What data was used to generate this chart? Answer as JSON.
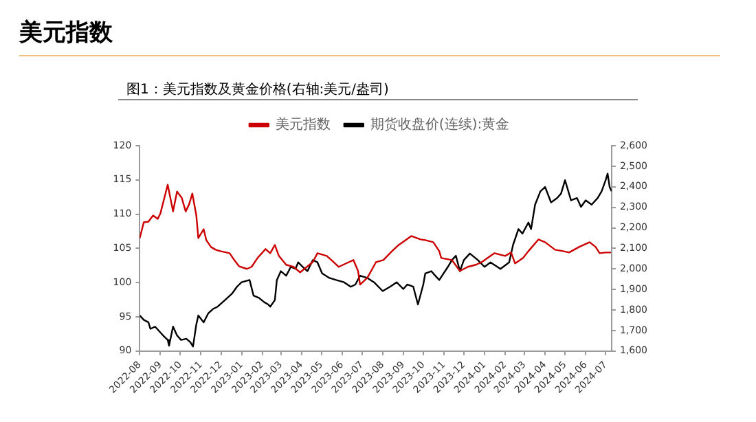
{
  "chart_data": {
    "type": "line",
    "title": "美元指数",
    "subtitle": "图1：美元指数及黄金价格(右轴:美元/盎司)",
    "xlim": [
      "2022-08-01",
      "2024-07-10"
    ],
    "xticks": [
      "2022-08",
      "2022-09",
      "2022-10",
      "2022-11",
      "2022-12",
      "2023-01",
      "2023-02",
      "2023-03",
      "2023-04",
      "2023-05",
      "2023-06",
      "2023-07",
      "2023-08",
      "2023-09",
      "2023-10",
      "2023-11",
      "2023-12",
      "2024-01",
      "2024-02",
      "2024-03",
      "2024-04",
      "2024-05",
      "2024-06",
      "2024-07"
    ],
    "ylim": [
      90,
      120
    ],
    "yticks": [
      90,
      95,
      100,
      105,
      110,
      115,
      120
    ],
    "y2lim": [
      1600,
      2600
    ],
    "y2ticks": [
      {
        "value": 1600,
        "label": "1,600"
      },
      {
        "value": 1700,
        "label": "1,700"
      },
      {
        "value": 1800,
        "label": "1,800"
      },
      {
        "value": 1900,
        "label": "1,900"
      },
      {
        "value": 2000,
        "label": "2,000"
      },
      {
        "value": 2100,
        "label": "2,100"
      },
      {
        "value": 2200,
        "label": "2,200"
      },
      {
        "value": 2300,
        "label": "2,300"
      },
      {
        "value": 2400,
        "label": "2,400"
      },
      {
        "value": 2500,
        "label": "2,500"
      },
      {
        "value": 2600,
        "label": "2,600"
      }
    ],
    "legend": "top",
    "marker": "none",
    "series": [
      {
        "name": "美元指数",
        "color": "#cc0000",
        "x": [
          "2022-08-01",
          "2022-08-07",
          "2022-08-14",
          "2022-08-21",
          "2022-08-28",
          "2022-09-01",
          "2022-09-12",
          "2022-09-20",
          "2022-09-26",
          "2022-10-03",
          "2022-10-09",
          "2022-10-14",
          "2022-10-19",
          "2022-10-25",
          "2022-10-28",
          "2022-11-05",
          "2022-11-09",
          "2022-11-16",
          "2022-11-23",
          "2022-11-30",
          "2022-12-14",
          "2022-12-21",
          "2022-12-28",
          "2023-01-09",
          "2023-01-16",
          "2023-01-25",
          "2023-02-06",
          "2023-02-13",
          "2023-02-20",
          "2023-02-26",
          "2023-03-09",
          "2023-03-20",
          "2023-03-30",
          "2023-04-18",
          "2023-04-25",
          "2023-05-09",
          "2023-05-16",
          "2023-05-27",
          "2023-06-18",
          "2023-06-25",
          "2023-06-28",
          "2023-07-09",
          "2023-07-22",
          "2023-08-02",
          "2023-08-15",
          "2023-08-25",
          "2023-09-13",
          "2023-09-27",
          "2023-10-04",
          "2023-10-16",
          "2023-10-25",
          "2023-10-28",
          "2023-11-13",
          "2023-11-25",
          "2023-12-07",
          "2023-12-19",
          "2023-12-28",
          "2024-01-16",
          "2024-02-01",
          "2024-02-10",
          "2024-02-16",
          "2024-02-28",
          "2024-03-07",
          "2024-03-22",
          "2024-04-01",
          "2024-04-16",
          "2024-04-28",
          "2024-05-07",
          "2024-05-22",
          "2024-06-07",
          "2024-06-16",
          "2024-06-22",
          "2024-07-01",
          "2024-07-09"
        ],
        "values": [
          106.5,
          108.8,
          108.9,
          109.8,
          109.3,
          110.1,
          114.3,
          110.4,
          113.3,
          112.4,
          110.4,
          111.4,
          113.0,
          109.8,
          106.5,
          107.8,
          106.2,
          105.2,
          104.8,
          104.6,
          104.3,
          103.3,
          102.4,
          102.0,
          102.3,
          103.6,
          104.9,
          104.3,
          105.5,
          103.9,
          102.6,
          102.3,
          101.5,
          103.0,
          104.3,
          103.9,
          103.3,
          102.3,
          103.3,
          101.7,
          99.7,
          100.7,
          103.0,
          103.3,
          104.6,
          105.5,
          106.8,
          106.3,
          106.2,
          105.9,
          104.6,
          103.6,
          103.3,
          101.7,
          102.3,
          102.6,
          103.0,
          104.3,
          103.9,
          104.4,
          102.8,
          103.6,
          104.6,
          106.3,
          105.9,
          104.8,
          104.6,
          104.4,
          105.2,
          105.9,
          105.2,
          104.3,
          104.4,
          104.4
        ]
      },
      {
        "name": "期货收盘价(连续):黄金",
        "color": "#000000",
        "axis": "y2",
        "x": [
          "2022-08-01",
          "2022-08-07",
          "2022-08-14",
          "2022-08-17",
          "2022-08-24",
          "2022-09-05",
          "2022-09-12",
          "2022-09-14",
          "2022-09-20",
          "2022-09-26",
          "2022-10-02",
          "2022-10-10",
          "2022-10-16",
          "2022-10-20",
          "2022-10-25",
          "2022-10-28",
          "2022-11-05",
          "2022-11-12",
          "2022-11-19",
          "2022-11-26",
          "2022-12-07",
          "2022-12-18",
          "2022-12-25",
          "2023-01-01",
          "2023-01-13",
          "2023-01-19",
          "2023-01-27",
          "2023-02-04",
          "2023-02-10",
          "2023-02-13",
          "2023-02-20",
          "2023-02-23",
          "2023-03-01",
          "2023-03-09",
          "2023-03-16",
          "2023-03-23",
          "2023-03-27",
          "2023-04-03",
          "2023-04-10",
          "2023-04-18",
          "2023-04-25",
          "2023-05-02",
          "2023-05-13",
          "2023-05-23",
          "2023-06-04",
          "2023-06-14",
          "2023-06-21",
          "2023-06-28",
          "2023-07-09",
          "2023-07-19",
          "2023-08-01",
          "2023-08-12",
          "2023-08-22",
          "2023-09-01",
          "2023-09-07",
          "2023-09-16",
          "2023-09-23",
          "2023-10-01",
          "2023-10-04",
          "2023-10-13",
          "2023-10-19",
          "2023-10-25",
          "2023-11-07",
          "2023-11-13",
          "2023-11-19",
          "2023-11-25",
          "2023-12-01",
          "2023-12-10",
          "2023-12-22",
          "2024-01-01",
          "2024-01-10",
          "2024-01-25",
          "2024-02-07",
          "2024-02-13",
          "2024-02-21",
          "2024-02-27",
          "2024-03-07",
          "2024-03-11",
          "2024-03-17",
          "2024-03-25",
          "2024-04-01",
          "2024-04-10",
          "2024-04-19",
          "2024-04-25",
          "2024-05-01",
          "2024-05-10",
          "2024-05-19",
          "2024-05-25",
          "2024-06-01",
          "2024-06-10",
          "2024-06-19",
          "2024-06-25",
          "2024-07-01",
          "2024-07-04",
          "2024-07-07",
          "2024-07-10"
        ],
        "values": [
          1773,
          1752,
          1740,
          1708,
          1719,
          1676,
          1654,
          1626,
          1719,
          1676,
          1654,
          1660,
          1643,
          1622,
          1730,
          1773,
          1740,
          1784,
          1805,
          1816,
          1848,
          1881,
          1913,
          1935,
          1946,
          1870,
          1859,
          1838,
          1827,
          1816,
          1848,
          1946,
          1989,
          1967,
          2010,
          2000,
          2032,
          2010,
          1989,
          2043,
          2032,
          1978,
          1956,
          1946,
          1935,
          1913,
          1924,
          1967,
          1956,
          1935,
          1892,
          1913,
          1935,
          1902,
          1924,
          1913,
          1827,
          1924,
          1978,
          1989,
          1967,
          1946,
          2010,
          2043,
          2064,
          1989,
          2043,
          2075,
          2043,
          2010,
          2032,
          2000,
          2032,
          2118,
          2194,
          2172,
          2226,
          2194,
          2313,
          2378,
          2399,
          2324,
          2345,
          2367,
          2432,
          2334,
          2345,
          2302,
          2334,
          2313,
          2345,
          2378,
          2432,
          2464,
          2399,
          2378
        ]
      }
    ]
  }
}
